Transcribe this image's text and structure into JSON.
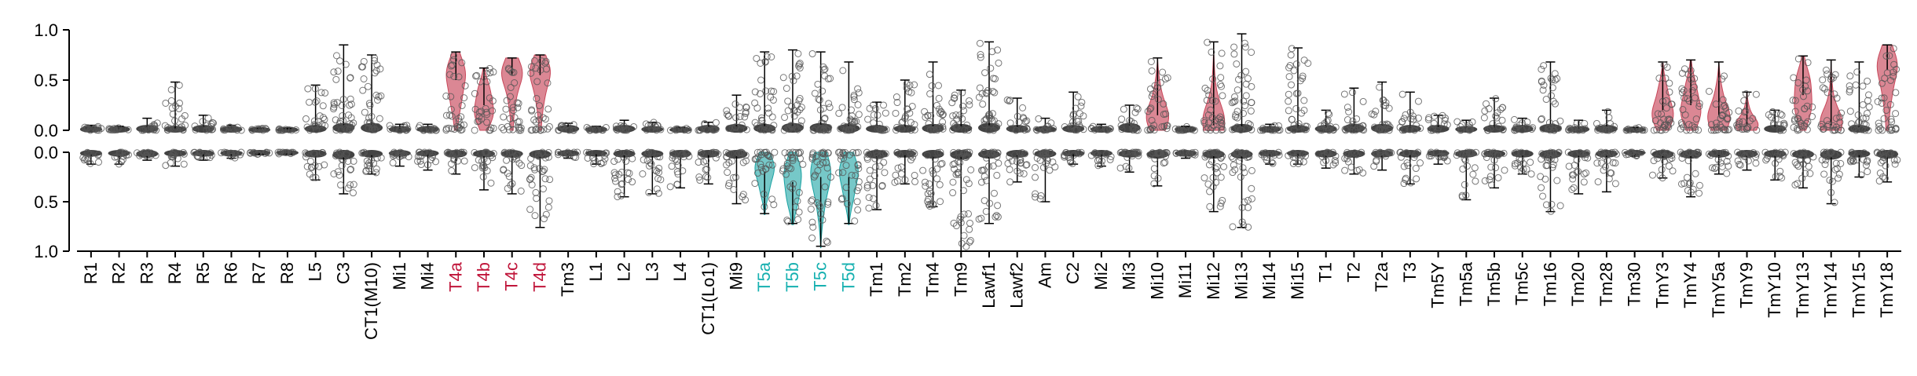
{
  "chart_data": {
    "type": "violin",
    "colors": {
      "red": "#c0153a",
      "teal": "#16b0b0",
      "default": "#000000",
      "violin_red": "#c8475a",
      "violin_teal": "#1aa3a3",
      "point": "#555555"
    },
    "top_panel": {
      "ylim": [
        0,
        1
      ],
      "yticks": [
        "1.0",
        "0.5",
        "0.0"
      ],
      "direction": "up"
    },
    "bottom_panel": {
      "ylim": [
        0,
        1
      ],
      "yticks": [
        "0.0",
        "0.5",
        "1.0"
      ],
      "direction": "down"
    },
    "categories": [
      {
        "name": "R1",
        "color": "default",
        "top": {
          "median": 0.02,
          "max": 0.05,
          "fill": "none"
        },
        "bottom": {
          "median": 0.02,
          "max": 0.12,
          "fill": "none"
        }
      },
      {
        "name": "R2",
        "color": "default",
        "top": {
          "median": 0.02,
          "max": 0.04,
          "fill": "none"
        },
        "bottom": {
          "median": 0.02,
          "max": 0.12,
          "fill": "none"
        }
      },
      {
        "name": "R3",
        "color": "default",
        "top": {
          "median": 0.03,
          "max": 0.12,
          "fill": "none"
        },
        "bottom": {
          "median": 0.03,
          "max": 0.08,
          "fill": "none"
        }
      },
      {
        "name": "R4",
        "color": "default",
        "top": {
          "median": 0.02,
          "max": 0.48,
          "fill": "none"
        },
        "bottom": {
          "median": 0.02,
          "max": 0.14,
          "fill": "none"
        }
      },
      {
        "name": "R5",
        "color": "default",
        "top": {
          "median": 0.03,
          "max": 0.15,
          "fill": "none"
        },
        "bottom": {
          "median": 0.02,
          "max": 0.08,
          "fill": "none"
        }
      },
      {
        "name": "R6",
        "color": "default",
        "top": {
          "median": 0.02,
          "max": 0.05,
          "fill": "none"
        },
        "bottom": {
          "median": 0.02,
          "max": 0.06,
          "fill": "none"
        }
      },
      {
        "name": "R7",
        "color": "default",
        "top": {
          "median": 0.01,
          "max": 0.02,
          "fill": "none"
        },
        "bottom": {
          "median": 0.01,
          "max": 0.02,
          "fill": "none"
        }
      },
      {
        "name": "R8",
        "color": "default",
        "top": {
          "median": 0.01,
          "max": 0.02,
          "fill": "none"
        },
        "bottom": {
          "median": 0.01,
          "max": 0.02,
          "fill": "none"
        }
      },
      {
        "name": "L5",
        "color": "default",
        "top": {
          "median": 0.03,
          "max": 0.45,
          "fill": "none"
        },
        "bottom": {
          "median": 0.03,
          "max": 0.28,
          "fill": "none"
        }
      },
      {
        "name": "C3",
        "color": "default",
        "top": {
          "median": 0.05,
          "max": 0.85,
          "fill": "none"
        },
        "bottom": {
          "median": 0.05,
          "max": 0.42,
          "fill": "none"
        }
      },
      {
        "name": "CT1(M10)",
        "color": "default",
        "top": {
          "median": 0.05,
          "max": 0.75,
          "fill": "none"
        },
        "bottom": {
          "median": 0.03,
          "max": 0.22,
          "fill": "none"
        }
      },
      {
        "name": "Mi1",
        "color": "default",
        "top": {
          "median": 0.02,
          "max": 0.06,
          "fill": "none"
        },
        "bottom": {
          "median": 0.02,
          "max": 0.14,
          "fill": "none"
        }
      },
      {
        "name": "Mi4",
        "color": "default",
        "top": {
          "median": 0.02,
          "max": 0.06,
          "fill": "none"
        },
        "bottom": {
          "median": 0.02,
          "max": 0.18,
          "fill": "none"
        }
      },
      {
        "name": "T4a",
        "color": "red",
        "top": {
          "median": 0.5,
          "max": 0.78,
          "fill": "red"
        },
        "bottom": {
          "median": 0.03,
          "max": 0.22,
          "fill": "none"
        }
      },
      {
        "name": "T4b",
        "color": "red",
        "top": {
          "median": 0.25,
          "max": 0.62,
          "fill": "red"
        },
        "bottom": {
          "median": 0.03,
          "max": 0.38,
          "fill": "none"
        }
      },
      {
        "name": "T4c",
        "color": "red",
        "top": {
          "median": 0.55,
          "max": 0.72,
          "fill": "red"
        },
        "bottom": {
          "median": 0.03,
          "max": 0.42,
          "fill": "none"
        }
      },
      {
        "name": "T4d",
        "color": "red",
        "top": {
          "median": 0.55,
          "max": 0.75,
          "fill": "red"
        },
        "bottom": {
          "median": 0.04,
          "max": 0.76,
          "fill": "none"
        }
      },
      {
        "name": "Tm3",
        "color": "default",
        "top": {
          "median": 0.03,
          "max": 0.07,
          "fill": "none"
        },
        "bottom": {
          "median": 0.02,
          "max": 0.06,
          "fill": "none"
        }
      },
      {
        "name": "L1",
        "color": "default",
        "top": {
          "median": 0.02,
          "max": 0.04,
          "fill": "none"
        },
        "bottom": {
          "median": 0.02,
          "max": 0.12,
          "fill": "none"
        }
      },
      {
        "name": "L2",
        "color": "default",
        "top": {
          "median": 0.03,
          "max": 0.1,
          "fill": "none"
        },
        "bottom": {
          "median": 0.03,
          "max": 0.45,
          "fill": "none"
        }
      },
      {
        "name": "L3",
        "color": "default",
        "top": {
          "median": 0.02,
          "max": 0.08,
          "fill": "none"
        },
        "bottom": {
          "median": 0.03,
          "max": 0.42,
          "fill": "none"
        }
      },
      {
        "name": "L4",
        "color": "default",
        "top": {
          "median": 0.01,
          "max": 0.03,
          "fill": "none"
        },
        "bottom": {
          "median": 0.03,
          "max": 0.36,
          "fill": "none"
        }
      },
      {
        "name": "CT1(Lo1)",
        "color": "default",
        "top": {
          "median": 0.03,
          "max": 0.08,
          "fill": "none"
        },
        "bottom": {
          "median": 0.03,
          "max": 0.32,
          "fill": "none"
        }
      },
      {
        "name": "Mi9",
        "color": "default",
        "top": {
          "median": 0.04,
          "max": 0.35,
          "fill": "none"
        },
        "bottom": {
          "median": 0.04,
          "max": 0.52,
          "fill": "none"
        }
      },
      {
        "name": "T5a",
        "color": "teal",
        "top": {
          "median": 0.04,
          "max": 0.78,
          "fill": "none"
        },
        "bottom": {
          "median": 0.2,
          "max": 0.62,
          "fill": "teal"
        }
      },
      {
        "name": "T5b",
        "color": "teal",
        "top": {
          "median": 0.05,
          "max": 0.8,
          "fill": "none"
        },
        "bottom": {
          "median": 0.3,
          "max": 0.72,
          "fill": "teal"
        }
      },
      {
        "name": "T5c",
        "color": "teal",
        "top": {
          "median": 0.05,
          "max": 0.78,
          "fill": "none"
        },
        "bottom": {
          "median": 0.25,
          "max": 0.95,
          "fill": "teal"
        }
      },
      {
        "name": "T5d",
        "color": "teal",
        "top": {
          "median": 0.04,
          "max": 0.68,
          "fill": "none"
        },
        "bottom": {
          "median": 0.25,
          "max": 0.72,
          "fill": "teal"
        }
      },
      {
        "name": "Tm1",
        "color": "default",
        "top": {
          "median": 0.03,
          "max": 0.28,
          "fill": "none"
        },
        "bottom": {
          "median": 0.04,
          "max": 0.58,
          "fill": "none"
        }
      },
      {
        "name": "Tm2",
        "color": "default",
        "top": {
          "median": 0.03,
          "max": 0.5,
          "fill": "none"
        },
        "bottom": {
          "median": 0.03,
          "max": 0.32,
          "fill": "none"
        }
      },
      {
        "name": "Tm4",
        "color": "default",
        "top": {
          "median": 0.04,
          "max": 0.68,
          "fill": "none"
        },
        "bottom": {
          "median": 0.04,
          "max": 0.55,
          "fill": "none"
        }
      },
      {
        "name": "Tm9",
        "color": "default",
        "top": {
          "median": 0.04,
          "max": 0.4,
          "fill": "none"
        },
        "bottom": {
          "median": 0.05,
          "max": 1.0,
          "fill": "none"
        }
      },
      {
        "name": "Lawf1",
        "color": "default",
        "top": {
          "median": 0.05,
          "max": 0.88,
          "fill": "none"
        },
        "bottom": {
          "median": 0.04,
          "max": 0.72,
          "fill": "none"
        }
      },
      {
        "name": "Lawf2",
        "color": "default",
        "top": {
          "median": 0.03,
          "max": 0.32,
          "fill": "none"
        },
        "bottom": {
          "median": 0.03,
          "max": 0.3,
          "fill": "none"
        }
      },
      {
        "name": "Am",
        "color": "default",
        "top": {
          "median": 0.02,
          "max": 0.12,
          "fill": "none"
        },
        "bottom": {
          "median": 0.03,
          "max": 0.5,
          "fill": "none"
        }
      },
      {
        "name": "C2",
        "color": "default",
        "top": {
          "median": 0.03,
          "max": 0.38,
          "fill": "none"
        },
        "bottom": {
          "median": 0.02,
          "max": 0.12,
          "fill": "none"
        }
      },
      {
        "name": "Mi2",
        "color": "default",
        "top": {
          "median": 0.02,
          "max": 0.06,
          "fill": "none"
        },
        "bottom": {
          "median": 0.02,
          "max": 0.14,
          "fill": "none"
        }
      },
      {
        "name": "Mi3",
        "color": "default",
        "top": {
          "median": 0.05,
          "max": 0.25,
          "fill": "none"
        },
        "bottom": {
          "median": 0.03,
          "max": 0.2,
          "fill": "none"
        }
      },
      {
        "name": "Mi10",
        "color": "default",
        "top": {
          "median": 0.15,
          "max": 0.72,
          "fill": "red"
        },
        "bottom": {
          "median": 0.04,
          "max": 0.34,
          "fill": "none"
        }
      },
      {
        "name": "Mi11",
        "color": "default",
        "top": {
          "median": 0.02,
          "max": 0.04,
          "fill": "none"
        },
        "bottom": {
          "median": 0.02,
          "max": 0.06,
          "fill": "none"
        }
      },
      {
        "name": "Mi12",
        "color": "default",
        "top": {
          "median": 0.05,
          "max": 0.88,
          "fill": "red"
        },
        "bottom": {
          "median": 0.04,
          "max": 0.6,
          "fill": "none"
        }
      },
      {
        "name": "Mi13",
        "color": "default",
        "top": {
          "median": 0.04,
          "max": 0.96,
          "fill": "none"
        },
        "bottom": {
          "median": 0.04,
          "max": 0.76,
          "fill": "none"
        }
      },
      {
        "name": "Mi14",
        "color": "default",
        "top": {
          "median": 0.02,
          "max": 0.06,
          "fill": "none"
        },
        "bottom": {
          "median": 0.02,
          "max": 0.12,
          "fill": "none"
        }
      },
      {
        "name": "Mi15",
        "color": "default",
        "top": {
          "median": 0.03,
          "max": 0.82,
          "fill": "none"
        },
        "bottom": {
          "median": 0.02,
          "max": 0.12,
          "fill": "none"
        }
      },
      {
        "name": "T1",
        "color": "default",
        "top": {
          "median": 0.03,
          "max": 0.2,
          "fill": "none"
        },
        "bottom": {
          "median": 0.03,
          "max": 0.16,
          "fill": "none"
        }
      },
      {
        "name": "T2",
        "color": "default",
        "top": {
          "median": 0.04,
          "max": 0.42,
          "fill": "none"
        },
        "bottom": {
          "median": 0.03,
          "max": 0.22,
          "fill": "none"
        }
      },
      {
        "name": "T2a",
        "color": "default",
        "top": {
          "median": 0.04,
          "max": 0.48,
          "fill": "none"
        },
        "bottom": {
          "median": 0.03,
          "max": 0.18,
          "fill": "none"
        }
      },
      {
        "name": "T3",
        "color": "default",
        "top": {
          "median": 0.03,
          "max": 0.38,
          "fill": "none"
        },
        "bottom": {
          "median": 0.03,
          "max": 0.32,
          "fill": "none"
        }
      },
      {
        "name": "Tm5Y",
        "color": "default",
        "top": {
          "median": 0.03,
          "max": 0.15,
          "fill": "none"
        },
        "bottom": {
          "median": 0.02,
          "max": 0.12,
          "fill": "none"
        }
      },
      {
        "name": "Tm5a",
        "color": "default",
        "top": {
          "median": 0.02,
          "max": 0.1,
          "fill": "none"
        },
        "bottom": {
          "median": 0.03,
          "max": 0.48,
          "fill": "none"
        }
      },
      {
        "name": "Tm5b",
        "color": "default",
        "top": {
          "median": 0.03,
          "max": 0.32,
          "fill": "none"
        },
        "bottom": {
          "median": 0.03,
          "max": 0.36,
          "fill": "none"
        }
      },
      {
        "name": "Tm5c",
        "color": "default",
        "top": {
          "median": 0.03,
          "max": 0.12,
          "fill": "none"
        },
        "bottom": {
          "median": 0.03,
          "max": 0.22,
          "fill": "none"
        }
      },
      {
        "name": "Tm16",
        "color": "default",
        "top": {
          "median": 0.04,
          "max": 0.68,
          "fill": "none"
        },
        "bottom": {
          "median": 0.04,
          "max": 0.6,
          "fill": "none"
        }
      },
      {
        "name": "Tm20",
        "color": "default",
        "top": {
          "median": 0.02,
          "max": 0.1,
          "fill": "none"
        },
        "bottom": {
          "median": 0.03,
          "max": 0.42,
          "fill": "none"
        }
      },
      {
        "name": "Tm28",
        "color": "default",
        "top": {
          "median": 0.03,
          "max": 0.2,
          "fill": "none"
        },
        "bottom": {
          "median": 0.03,
          "max": 0.4,
          "fill": "none"
        }
      },
      {
        "name": "Tm30",
        "color": "default",
        "top": {
          "median": 0.01,
          "max": 0.03,
          "fill": "none"
        },
        "bottom": {
          "median": 0.01,
          "max": 0.04,
          "fill": "none"
        }
      },
      {
        "name": "TmY3",
        "color": "default",
        "top": {
          "median": 0.2,
          "max": 0.68,
          "fill": "red"
        },
        "bottom": {
          "median": 0.04,
          "max": 0.26,
          "fill": "none"
        }
      },
      {
        "name": "TmY4",
        "color": "default",
        "top": {
          "median": 0.25,
          "max": 0.7,
          "fill": "red"
        },
        "bottom": {
          "median": 0.04,
          "max": 0.45,
          "fill": "none"
        }
      },
      {
        "name": "TmY5a",
        "color": "default",
        "top": {
          "median": 0.15,
          "max": 0.68,
          "fill": "red"
        },
        "bottom": {
          "median": 0.03,
          "max": 0.22,
          "fill": "none"
        }
      },
      {
        "name": "TmY9",
        "color": "default",
        "top": {
          "median": 0.05,
          "max": 0.38,
          "fill": "red"
        },
        "bottom": {
          "median": 0.03,
          "max": 0.18,
          "fill": "none"
        }
      },
      {
        "name": "TmY10",
        "color": "default",
        "top": {
          "median": 0.03,
          "max": 0.2,
          "fill": "none"
        },
        "bottom": {
          "median": 0.03,
          "max": 0.28,
          "fill": "none"
        }
      },
      {
        "name": "TmY13",
        "color": "default",
        "top": {
          "median": 0.35,
          "max": 0.74,
          "fill": "red"
        },
        "bottom": {
          "median": 0.04,
          "max": 0.36,
          "fill": "none"
        }
      },
      {
        "name": "TmY14",
        "color": "default",
        "top": {
          "median": 0.05,
          "max": 0.7,
          "fill": "red"
        },
        "bottom": {
          "median": 0.05,
          "max": 0.52,
          "fill": "none"
        }
      },
      {
        "name": "TmY15",
        "color": "default",
        "top": {
          "median": 0.03,
          "max": 0.68,
          "fill": "none"
        },
        "bottom": {
          "median": 0.03,
          "max": 0.25,
          "fill": "none"
        }
      },
      {
        "name": "TmY18",
        "color": "default",
        "top": {
          "median": 0.6,
          "max": 0.85,
          "fill": "red"
        },
        "bottom": {
          "median": 0.04,
          "max": 0.3,
          "fill": "none"
        }
      }
    ]
  }
}
